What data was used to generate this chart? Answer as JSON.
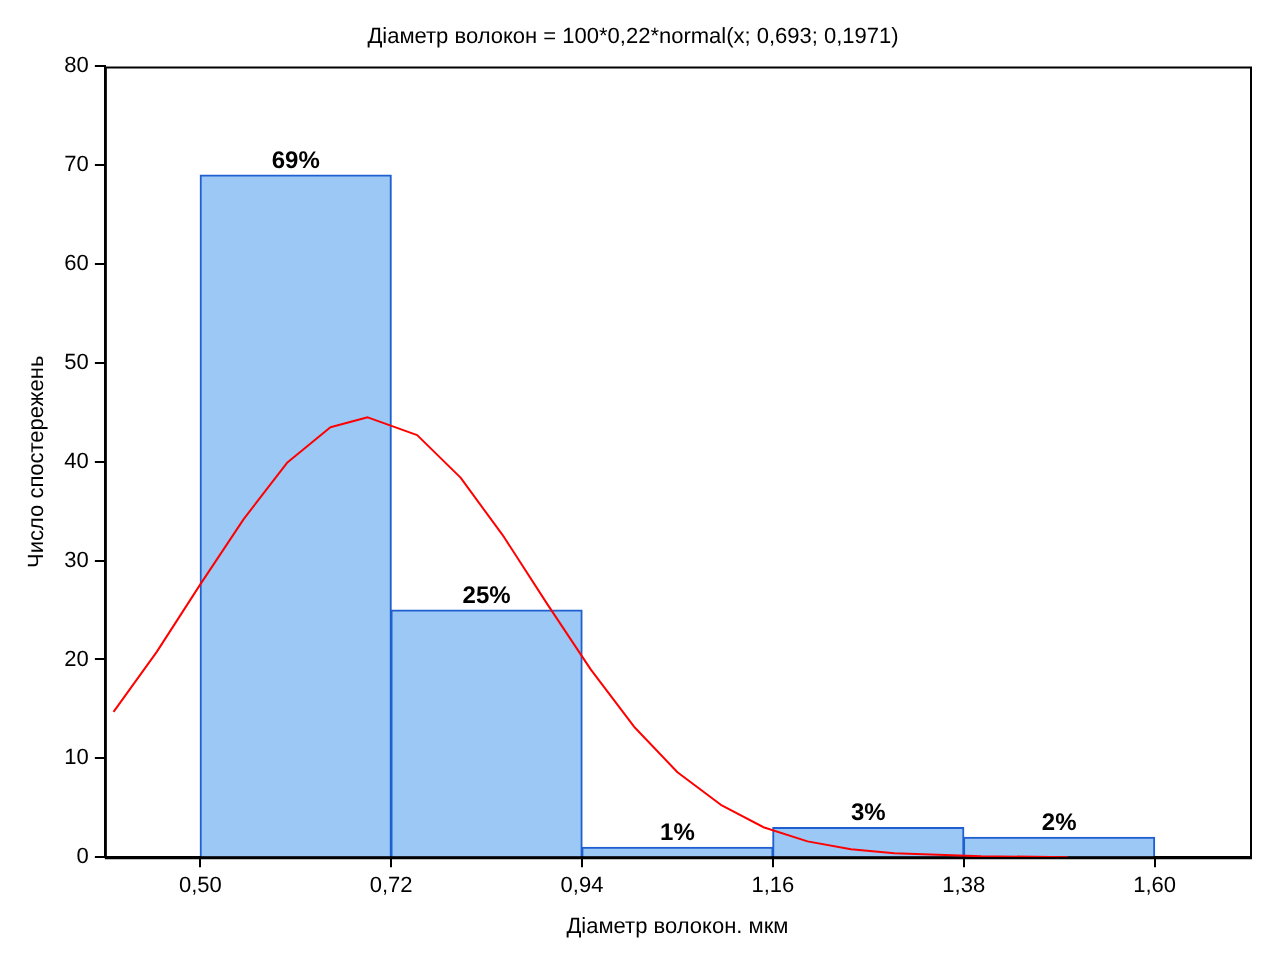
{
  "chart_data": {
    "type": "histogram",
    "title": "Діаметр волокон = 100*0,22*normal(x; 0,693; 0,1971)",
    "xlabel": "Діаметр волокон. мкм",
    "ylabel": "Число спостережень",
    "bins": [
      0.5,
      0.72,
      0.94,
      1.16,
      1.38,
      1.6
    ],
    "values": [
      69,
      25,
      1,
      3,
      2
    ],
    "value_labels": [
      "69%",
      "25%",
      "1%",
      "3%",
      "2%"
    ],
    "color": "#9cc8f5",
    "series": [
      {
        "type": "line",
        "color": "#ff0000",
        "x": [
          0.4,
          0.45,
          0.5,
          0.55,
          0.6,
          0.65,
          0.693,
          0.75,
          0.8,
          0.85,
          0.9,
          0.95,
          1.0,
          1.05,
          1.1,
          1.15,
          1.2,
          1.25,
          1.3,
          1.4,
          1.5
        ],
        "values": [
          14.7,
          20.8,
          27.6,
          34.2,
          39.9,
          43.5,
          44.5,
          42.7,
          38.4,
          32.4,
          25.6,
          19.0,
          13.2,
          8.6,
          5.3,
          3.0,
          1.6,
          0.8,
          0.4,
          0.1,
          0
        ]
      }
    ],
    "xlim": [
      0.39,
      1.71
    ],
    "xticks": [
      {
        "value": 0.5,
        "label": "0,50"
      },
      {
        "value": 0.72,
        "label": "0,72"
      },
      {
        "value": 0.94,
        "label": "0,94"
      },
      {
        "value": 1.16,
        "label": "1,16"
      },
      {
        "value": 1.38,
        "label": "1,38"
      },
      {
        "value": 1.6,
        "label": "1,60"
      }
    ],
    "ylim": [
      0,
      80
    ],
    "yticks": [
      0,
      10,
      20,
      30,
      40,
      50,
      60,
      70,
      80
    ]
  }
}
